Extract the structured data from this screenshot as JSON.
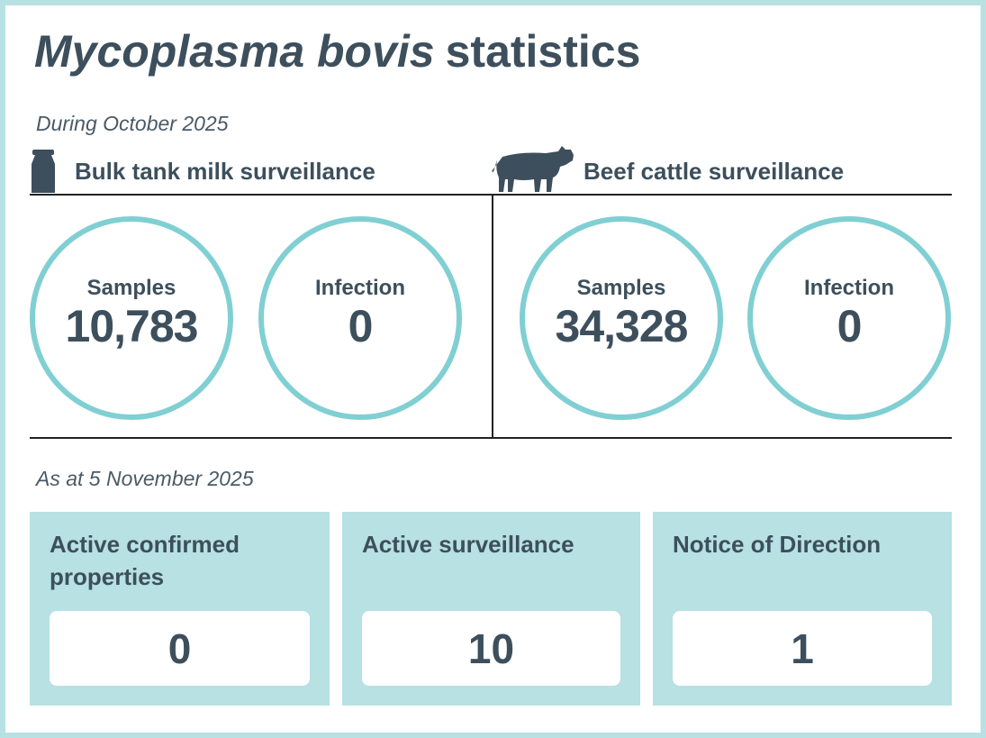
{
  "header": {
    "title_italic": "Mycoplasma bovis",
    "title_rest": "statistics"
  },
  "period": {
    "label": "During October 2025",
    "sections": [
      {
        "title": "Bulk tank milk surveillance",
        "stats": [
          {
            "label": "Samples",
            "value": "10,783"
          },
          {
            "label": "Infection",
            "value": "0"
          }
        ]
      },
      {
        "title": "Beef cattle surveillance",
        "stats": [
          {
            "label": "Samples",
            "value": "34,328"
          },
          {
            "label": "Infection",
            "value": "0"
          }
        ]
      }
    ]
  },
  "current": {
    "label": "As at 5 November 2025",
    "cards": [
      {
        "title": "Active confirmed properties",
        "value": "0"
      },
      {
        "title": "Active surveillance",
        "value": "10"
      },
      {
        "title": "Notice of Direction",
        "value": "1"
      }
    ]
  }
}
